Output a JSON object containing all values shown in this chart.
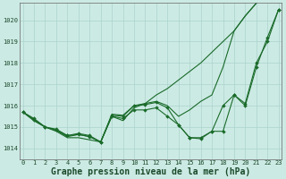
{
  "bg_color": "#cceae4",
  "grid_color": "#aad4cc",
  "line_color": "#1a6b2a",
  "marker_color": "#1a6b2a",
  "xlabel": "Graphe pression niveau de la mer (hPa)",
  "xlabel_fontsize": 7,
  "ylim": [
    1013.5,
    1020.8
  ],
  "xlim": [
    -0.3,
    23.3
  ],
  "yticks": [
    1014,
    1015,
    1016,
    1017,
    1018,
    1019,
    1020
  ],
  "xticks": [
    0,
    1,
    2,
    3,
    4,
    5,
    6,
    7,
    8,
    9,
    10,
    11,
    12,
    13,
    14,
    15,
    16,
    17,
    18,
    19,
    20,
    21,
    22,
    23
  ],
  "series": [
    {
      "x": [
        0,
        1,
        2,
        3,
        4,
        5,
        6,
        7,
        8,
        9,
        10,
        11,
        12,
        13,
        14,
        15,
        16,
        17,
        18,
        19,
        20,
        21,
        22,
        23
      ],
      "y": [
        1015.7,
        1015.4,
        1015.0,
        1014.9,
        1014.6,
        1014.7,
        1014.6,
        1014.3,
        1015.5,
        1015.4,
        1015.8,
        1015.8,
        1015.9,
        1015.5,
        1015.1,
        1014.5,
        1014.5,
        1014.8,
        1014.8,
        1016.5,
        1016.0,
        1017.8,
        1019.2,
        1020.5
      ],
      "has_markers": true
    },
    {
      "x": [
        0,
        1,
        2,
        3,
        4,
        5,
        6,
        7,
        8,
        9,
        10,
        11,
        12,
        13,
        14,
        15,
        16,
        17,
        18,
        19,
        20,
        21
      ],
      "y": [
        1015.7,
        1015.3,
        1015.0,
        1014.85,
        1014.55,
        1014.65,
        1014.55,
        1014.3,
        1015.6,
        1015.55,
        1016.0,
        1016.1,
        1016.2,
        1016.0,
        1015.5,
        1015.8,
        1016.2,
        1016.5,
        1017.8,
        1019.5,
        1020.2,
        1020.8
      ],
      "has_markers": false
    },
    {
      "x": [
        0,
        1,
        2,
        3,
        4,
        5,
        6,
        7,
        8,
        9,
        10,
        11,
        12,
        13,
        14,
        15,
        16,
        17,
        18,
        19,
        20,
        21
      ],
      "y": [
        1015.7,
        1015.3,
        1015.0,
        1014.8,
        1014.5,
        1014.5,
        1014.4,
        1014.3,
        1015.5,
        1015.3,
        1015.9,
        1016.1,
        1016.5,
        1016.8,
        1017.2,
        1017.6,
        1018.0,
        1018.5,
        1019.0,
        1019.5,
        1020.2,
        1020.8
      ],
      "has_markers": false
    },
    {
      "x": [
        0,
        1,
        2,
        3,
        4,
        5,
        6,
        7,
        8,
        9,
        10,
        11,
        12,
        13,
        14,
        15,
        16,
        17,
        18,
        19,
        20,
        21,
        22,
        23
      ],
      "y": [
        1015.7,
        1015.35,
        1015.0,
        1014.85,
        1014.6,
        1014.65,
        1014.55,
        1014.3,
        1015.55,
        1015.5,
        1016.0,
        1016.05,
        1016.15,
        1015.9,
        1015.1,
        1014.5,
        1014.45,
        1014.8,
        1016.0,
        1016.5,
        1016.1,
        1018.0,
        1019.0,
        1020.5
      ],
      "has_markers": true
    }
  ]
}
